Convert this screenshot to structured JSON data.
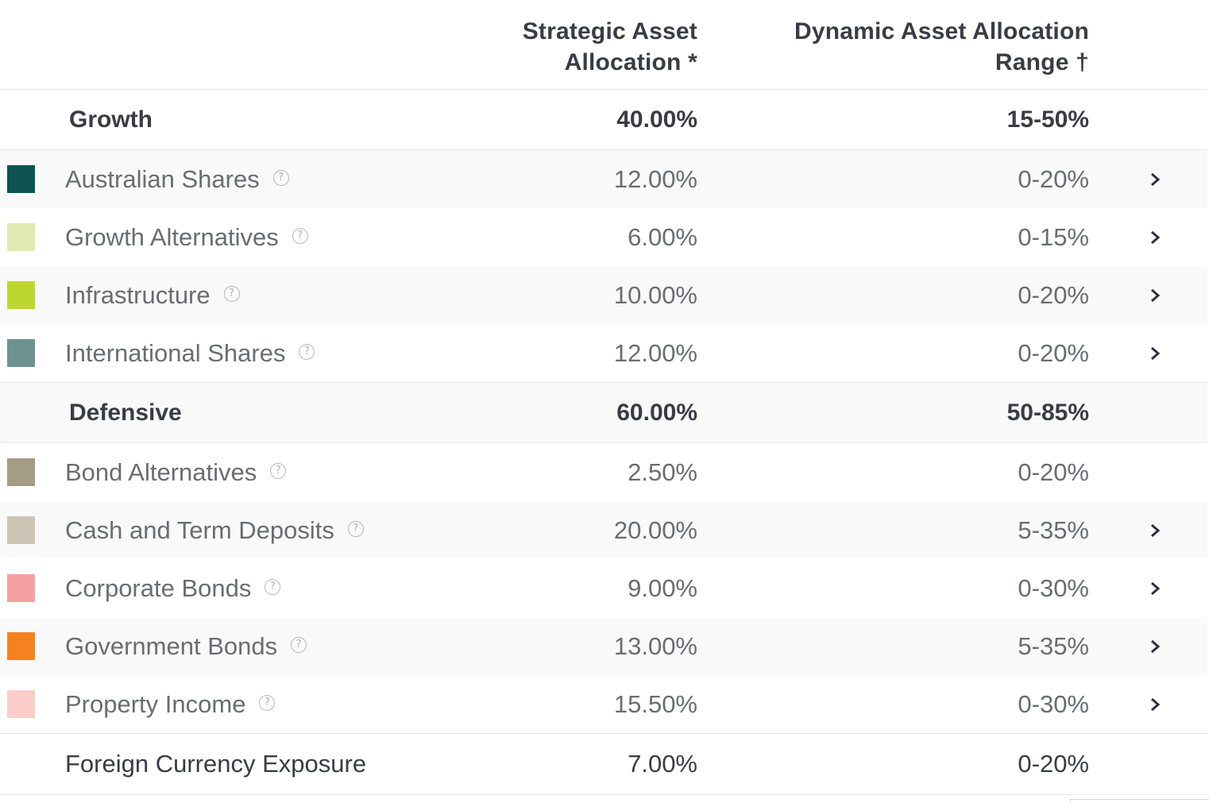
{
  "header": {
    "saa_line1": "Strategic Asset",
    "saa_line2": "Allocation *",
    "daa_line1": "Dynamic Asset Allocation",
    "daa_line2": "Range †"
  },
  "groups": {
    "growth": {
      "label": "Growth",
      "saa": "40.00%",
      "daa": "15-50%"
    },
    "defensive": {
      "label": "Defensive",
      "saa": "60.00%",
      "daa": "50-85%"
    }
  },
  "assets": [
    {
      "label": "Australian Shares",
      "saa": "12.00%",
      "daa": "0-20%",
      "color": "#0d5450",
      "expandable": true
    },
    {
      "label": "Growth Alternatives",
      "saa": "6.00%",
      "daa": "0-15%",
      "color": "#e1ebb2",
      "expandable": true
    },
    {
      "label": "Infrastructure",
      "saa": "10.00%",
      "daa": "0-20%",
      "color": "#bed631",
      "expandable": true
    },
    {
      "label": "International Shares",
      "saa": "12.00%",
      "daa": "0-20%",
      "color": "#6e9191",
      "expandable": true
    },
    {
      "label": "Bond Alternatives",
      "saa": "2.50%",
      "daa": "0-20%",
      "color": "#a59c86",
      "expandable": false
    },
    {
      "label": "Cash and Term Deposits",
      "saa": "20.00%",
      "daa": "5-35%",
      "color": "#ccc4b4",
      "expandable": true
    },
    {
      "label": "Corporate Bonds",
      "saa": "9.00%",
      "daa": "0-30%",
      "color": "#f5a1a2",
      "expandable": true
    },
    {
      "label": "Government Bonds",
      "saa": "13.00%",
      "daa": "5-35%",
      "color": "#f58221",
      "expandable": true
    },
    {
      "label": "Property Income",
      "saa": "15.50%",
      "daa": "0-30%",
      "color": "#fbcdcb",
      "expandable": true
    }
  ],
  "footer": {
    "label": "Foreign Currency Exposure",
    "saa": "7.00%",
    "daa": "0-20%"
  },
  "help_glyph": "?"
}
